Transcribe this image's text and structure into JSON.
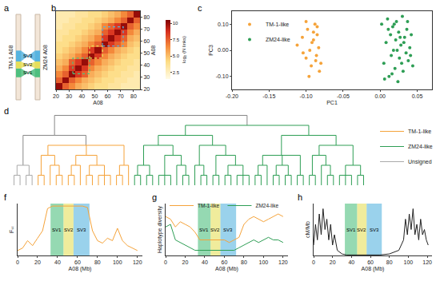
{
  "chart_data": [
    {
      "type": "diagram",
      "title": "a",
      "labels": [
        "TM-1 A08",
        "ZM24 A08"
      ],
      "sv_regions": [
        {
          "name": "SV1",
          "start": 33,
          "end": 46,
          "color": "#4fbf7f"
        },
        {
          "name": "SV2",
          "start": 46,
          "end": 56,
          "color": "#e6df5a"
        },
        {
          "name": "SV3",
          "start": 56,
          "end": 72,
          "color": "#56b4e0"
        }
      ]
    },
    {
      "type": "heatmap",
      "title": "b",
      "x_label": "A08",
      "y_label": "A08",
      "x": [
        22.5,
        27.5,
        32.5,
        37.5,
        42.5,
        47.5,
        52.5,
        57.5,
        62.5,
        67.5,
        72.5,
        77.5,
        82.5
      ],
      "y": [
        22.5,
        27.5,
        32.5,
        37.5,
        42.5,
        47.5,
        52.5,
        57.5,
        62.5,
        67.5,
        72.5,
        77.5,
        82.5
      ],
      "z": [
        [
          10,
          7.5,
          6.5,
          5.5,
          5,
          4.5,
          4,
          4,
          3.5,
          3.5,
          3,
          3,
          3
        ],
        [
          7.5,
          10,
          7.5,
          6.5,
          5.5,
          5,
          4.5,
          4,
          4,
          3.5,
          3.5,
          3,
          3
        ],
        [
          6.5,
          7.5,
          10,
          8.5,
          7.5,
          5.5,
          5,
          4.5,
          4,
          4,
          3.5,
          3.5,
          3
        ],
        [
          5.5,
          6.5,
          8.5,
          10,
          8.5,
          6.5,
          5.5,
          5,
          4.5,
          4,
          4,
          3.5,
          3.5
        ],
        [
          5,
          5.5,
          7.5,
          8.5,
          10,
          7.5,
          6.5,
          5.5,
          5,
          4.5,
          4,
          4,
          3.5
        ],
        [
          4.5,
          5,
          5.5,
          6.5,
          7.5,
          10,
          8.5,
          6.5,
          5.5,
          5,
          4.5,
          4,
          4
        ],
        [
          4,
          4.5,
          5,
          5.5,
          6.5,
          8.5,
          10,
          7.5,
          6.5,
          5.5,
          5,
          4.5,
          4
        ],
        [
          4,
          4,
          4.5,
          5,
          5.5,
          6.5,
          7.5,
          10,
          8.5,
          7.5,
          6.5,
          5,
          4.5
        ],
        [
          3.5,
          4,
          4,
          4.5,
          5,
          5.5,
          6.5,
          8.5,
          10,
          8.5,
          7.5,
          5.5,
          5
        ],
        [
          3.5,
          3.5,
          4,
          4,
          4.5,
          5,
          5.5,
          7.5,
          8.5,
          10,
          8.5,
          6.5,
          5.5
        ],
        [
          3,
          3.5,
          3.5,
          4,
          4,
          4.5,
          5,
          6.5,
          7.5,
          8.5,
          10,
          7.5,
          6.5
        ],
        [
          3,
          3,
          3.5,
          3.5,
          4,
          4,
          4.5,
          5,
          5.5,
          6.5,
          7.5,
          10,
          7.5
        ],
        [
          3,
          3,
          3,
          3.5,
          3.5,
          4,
          4,
          4.5,
          5,
          5.5,
          6.5,
          7.5,
          10
        ]
      ],
      "xlim": [
        20,
        85
      ],
      "ylim": [
        20,
        85
      ],
      "xticks": [
        20,
        30,
        40,
        50,
        60,
        70,
        80
      ],
      "yticks": [
        20,
        30,
        40,
        50,
        60,
        70,
        80
      ],
      "color_label": "log₂ (N links)",
      "color_range": [
        1.5,
        10.5
      ],
      "color_ticks": [
        2.5,
        {
          "value": 5,
          "label": "5.0"
        },
        7.5,
        10
      ]
    },
    {
      "type": "scatter",
      "title": "c",
      "x_label": "PC1",
      "y_label": "PC3",
      "legend": "top left",
      "xlim": [
        -0.2,
        0.07
      ],
      "ylim": [
        -0.15,
        0.15
      ],
      "xticks": [
        {
          "value": -0.2,
          "label": "-0.20"
        },
        -0.15,
        {
          "value": -0.1,
          "label": "-0.10"
        },
        -0.05,
        {
          "value": 0,
          "label": "0.00"
        },
        0.05
      ],
      "yticks": [
        {
          "value": -0.1,
          "label": "-0.10"
        },
        {
          "value": 0,
          "label": "0.00"
        },
        {
          "value": 0.1,
          "label": "0.10"
        }
      ],
      "series": [
        {
          "name": "TM-1-like",
          "color": "#f5a33a",
          "x": [
            -0.112,
            -0.105,
            -0.1,
            -0.098,
            -0.095,
            -0.093,
            -0.09,
            -0.088,
            -0.086,
            -0.085,
            -0.083,
            -0.082,
            -0.1,
            -0.096,
            -0.09,
            -0.087,
            -0.104,
            -0.092,
            -0.085,
            -0.08
          ],
          "y": [
            0.02,
            0.05,
            -0.03,
            0.08,
            0.0,
            -0.06,
            0.04,
            0.1,
            -0.02,
            0.06,
            0.01,
            -0.08,
            0.11,
            -0.1,
            0.07,
            -0.04,
            -0.01,
            0.03,
            0.09,
            -0.05
          ]
        },
        {
          "name": "ZM24-like",
          "color": "#2e9e55",
          "x": [
            0.002,
            0.005,
            0.008,
            0.01,
            0.012,
            0.014,
            0.015,
            0.017,
            0.018,
            0.02,
            0.021,
            0.022,
            0.024,
            0.025,
            0.026,
            0.028,
            0.03,
            0.031,
            0.033,
            0.035,
            0.036,
            0.038,
            0.04,
            0.042,
            0.044,
            0.006,
            0.011,
            0.016,
            0.019,
            0.023,
            0.027,
            0.029,
            0.032,
            0.037,
            0.041
          ],
          "y": [
            0.1,
            -0.05,
            0.03,
            0.12,
            -0.1,
            0.06,
            -0.02,
            0.09,
            0.0,
            -0.07,
            0.04,
            0.11,
            -0.12,
            0.07,
            -0.03,
            0.02,
            0.13,
            -0.08,
            0.05,
            -0.01,
            0.08,
            -0.04,
            0.01,
            0.06,
            -0.06,
            -0.11,
            0.08,
            -0.09,
            0.1,
            0.0,
            0.05,
            -0.05,
            0.03,
            0.11,
            -0.02
          ]
        }
      ]
    },
    {
      "type": "dendrogram",
      "title": "d",
      "legend": "right",
      "series": [
        {
          "name": "TM-1-like",
          "color": "#f5a33a"
        },
        {
          "name": "ZM24-like",
          "color": "#2e9e55"
        },
        {
          "name": "Unsigned",
          "color": "#aaaaaa"
        }
      ],
      "tree": [
        [
          [
            [
              2,
              2
            ],
            [
              2,
              2
            ]
          ],
          [
            [
              [
                0,
                0
              ],
              [
                0,
                [
                  0,
                  0
                ]
              ]
            ],
            [
              [
                [
                  0,
                  0
                ],
                0
              ],
              [
                [
                  0,
                  0
                ],
                [
                  0,
                  0,
                  0
                ]
              ]
            ],
            [
              [
                0,
                0
              ],
              0
            ]
          ]
        ],
        [
          [
            [
              [
                [
                  1,
                  1
                ],
                [
                  1,
                  1
                ]
              ],
              [
                [
                  1,
                  1,
                  1
                ],
                [
                  1,
                  [
                    1,
                    1
                  ]
                ]
              ]
            ],
            [
              [
                1,
                [
                  1,
                  1
                ]
              ],
              [
                [
                  1,
                  1
                ],
                [
                  [
                    1,
                    1
                  ],
                  [
                    1,
                    1,
                    1
                  ]
                ]
              ]
            ]
          ],
          [
            [
              [
                [
                  1,
                  1
                ],
                1
              ],
              [
                [
                  1,
                  1
                ],
                [
                  1,
                  1
                ]
              ],
              [
                1,
                1
              ]
            ],
            [
              [
                [
                  1,
                  1
                ],
                [
                  1,
                  [
                    1,
                    1
                  ]
                ]
              ],
              [
                [
                  1,
                  1,
                  1
                ],
                [
                  1,
                  1
                ]
              ]
            ]
          ]
        ]
      ]
    },
    {
      "type": "line",
      "title": "f",
      "x_label": "A08 (Mb)",
      "y_label": "Fₛₜ",
      "tick_labels": "x",
      "xlim": [
        0,
        125
      ],
      "ylim": [
        0,
        1.05
      ],
      "xticks": [
        0,
        20,
        40,
        60,
        80,
        100,
        120
      ],
      "x": [
        0,
        5,
        10,
        15,
        20,
        25,
        30,
        35,
        40,
        45,
        50,
        55,
        60,
        65,
        70,
        75,
        80,
        85,
        90,
        95,
        100,
        105,
        110,
        115,
        120
      ],
      "values": [
        0.1,
        0.15,
        0.3,
        0.2,
        0.35,
        0.5,
        0.95,
        1,
        1,
        1,
        1,
        1,
        1,
        1,
        0.97,
        0.5,
        0.3,
        0.25,
        0.35,
        0.3,
        0.55,
        0.3,
        0.2,
        0.15,
        0.1
      ],
      "color": "#f5a33a"
    },
    {
      "type": "line",
      "title": "g",
      "x_label": "A08 (Mb)",
      "y_label": "Haplotype diversity",
      "tick_labels": "x",
      "legend": "top",
      "xlim": [
        0,
        125
      ],
      "ylim": [
        0,
        1
      ],
      "xticks": [
        0,
        20,
        40,
        60,
        80,
        100,
        120
      ],
      "x": [
        0,
        5,
        10,
        15,
        20,
        25,
        30,
        35,
        40,
        45,
        50,
        55,
        60,
        65,
        70,
        75,
        80,
        85,
        90,
        95,
        100,
        105,
        110,
        115,
        120
      ],
      "series": [
        {
          "name": "TM-1-like",
          "color": "#f5a33a",
          "values": [
            0.75,
            0.7,
            0.55,
            0.65,
            0.6,
            0.55,
            0.45,
            0.3,
            0.3,
            0.3,
            0.3,
            0.3,
            0.3,
            0.25,
            0.3,
            0.35,
            0.6,
            0.7,
            0.75,
            0.7,
            0.65,
            0.7,
            0.75,
            0.8,
            0.75
          ]
        },
        {
          "name": "ZM24-like",
          "color": "#2e9e55",
          "values": [
            0.55,
            0.6,
            0.3,
            0.25,
            0.2,
            0.15,
            0.1,
            0.1,
            0.1,
            0.1,
            0.1,
            0.1,
            0.1,
            0.1,
            0.1,
            0.15,
            0.2,
            0.25,
            0.3,
            0.25,
            0.3,
            0.35,
            0.3,
            0.3,
            0.25
          ]
        }
      ]
    },
    {
      "type": "line",
      "title": "h",
      "x_label": "A08 (Mb)",
      "y_label": "cM/Mb",
      "tick_labels": "x",
      "xlim": [
        0,
        125
      ],
      "ylim": [
        0,
        10
      ],
      "xticks": [
        0,
        20,
        40,
        60,
        80,
        100,
        120
      ],
      "x": [
        0,
        2,
        4,
        6,
        8,
        10,
        12,
        14,
        16,
        18,
        20,
        22,
        25,
        30,
        35,
        40,
        50,
        60,
        70,
        80,
        90,
        95,
        97,
        99,
        101,
        103,
        105,
        107,
        109,
        111,
        113,
        115,
        117,
        119,
        121
      ],
      "values": [
        2,
        6,
        3,
        8,
        4,
        9,
        5,
        7,
        3,
        6,
        2,
        4,
        1,
        0.3,
        0.1,
        0.1,
        0.1,
        0.1,
        0.1,
        0.3,
        1,
        3,
        7,
        4,
        8,
        5,
        9,
        4,
        6,
        3,
        7,
        4,
        5,
        3,
        2
      ],
      "color": "#222222"
    }
  ]
}
